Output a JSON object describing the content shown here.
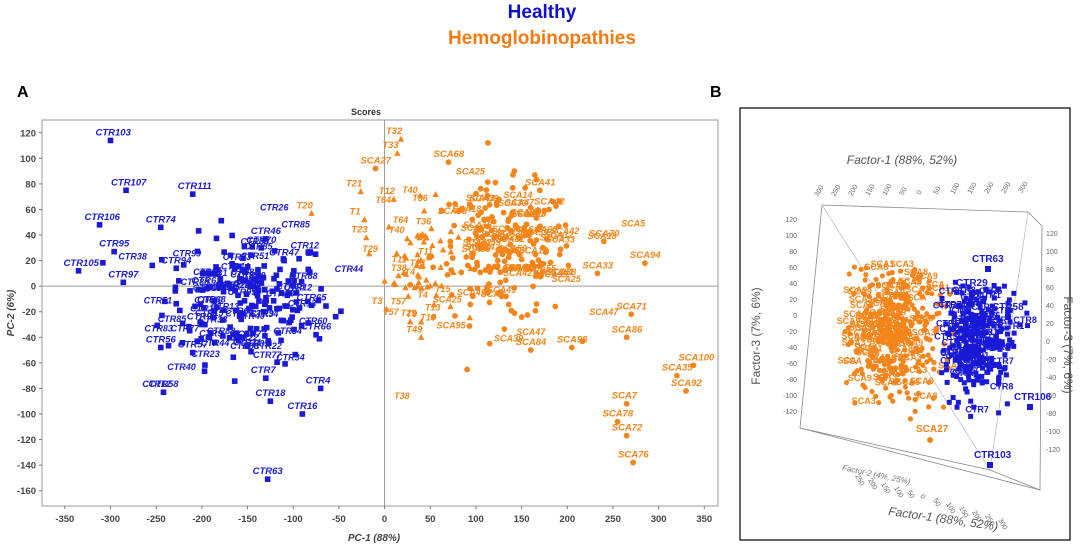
{
  "legend": {
    "healthy": "Healthy",
    "hemo": "Hemoglobinopathies"
  },
  "panels": {
    "a": "A",
    "b": "B"
  },
  "colors": {
    "healthy": "#1a1ad6",
    "hemo": "#f4851b"
  },
  "chart_data": [
    {
      "type": "scatter",
      "title": "Scores",
      "xlabel": "PC-1 (88%)",
      "ylabel": "PC-2 (6%)",
      "xlim": [
        -375,
        365
      ],
      "ylim": [
        -172,
        130
      ],
      "xticks": [
        -350,
        -300,
        -250,
        -200,
        -150,
        -100,
        -50,
        0,
        50,
        100,
        150,
        200,
        250,
        300,
        350
      ],
      "yticks": [
        -160,
        -140,
        -120,
        -100,
        -80,
        -60,
        -40,
        -20,
        0,
        20,
        40,
        60,
        80,
        100,
        120
      ],
      "labeled_points": [
        {
          "g": "h",
          "m": "s",
          "l": "CTR103",
          "x": -300,
          "y": 114
        },
        {
          "g": "h",
          "m": "s",
          "l": "CTR107",
          "x": -283,
          "y": 75
        },
        {
          "g": "h",
          "m": "s",
          "l": "CTR106",
          "x": -312,
          "y": 48
        },
        {
          "g": "h",
          "m": "s",
          "l": "CTR105",
          "x": -335,
          "y": 12
        },
        {
          "g": "h",
          "m": "s",
          "l": "CTR95",
          "x": -296,
          "y": 27
        },
        {
          "g": "h",
          "m": "s",
          "l": "CTR97",
          "x": -286,
          "y": 3
        },
        {
          "g": "h",
          "m": "s",
          "l": "CTR111",
          "x": -210,
          "y": 72
        },
        {
          "g": "h",
          "m": "s",
          "l": "CTR74",
          "x": -245,
          "y": 46
        },
        {
          "g": "h",
          "m": "s",
          "l": "CTR94",
          "x": -228,
          "y": 14
        },
        {
          "g": "h",
          "m": "s",
          "l": "CTR62",
          "x": -195,
          "y": -2
        },
        {
          "g": "h",
          "m": "s",
          "l": "CTR93",
          "x": -200,
          "y": -30
        },
        {
          "g": "h",
          "m": "s",
          "l": "CTR56",
          "x": -245,
          "y": -48
        },
        {
          "g": "h",
          "m": "s",
          "l": "CTR57",
          "x": -210,
          "y": -52
        },
        {
          "g": "h",
          "m": "s",
          "l": "CTR58",
          "x": -242,
          "y": -83
        },
        {
          "g": "h",
          "m": "s",
          "l": "CTR46",
          "x": -130,
          "y": 37
        },
        {
          "g": "h",
          "m": "s",
          "l": "CTR47",
          "x": -110,
          "y": 20
        },
        {
          "g": "h",
          "m": "s",
          "l": "CTR70",
          "x": -135,
          "y": 30
        },
        {
          "g": "h",
          "m": "s",
          "l": "CTR65",
          "x": -80,
          "y": -15
        },
        {
          "g": "h",
          "m": "s",
          "l": "CTR66",
          "x": -75,
          "y": -38
        },
        {
          "g": "h",
          "m": "s",
          "l": "CTR7",
          "x": -130,
          "y": -72
        },
        {
          "g": "h",
          "m": "s",
          "l": "CTR18",
          "x": -125,
          "y": -90
        },
        {
          "g": "h",
          "m": "s",
          "l": "CTR4",
          "x": -70,
          "y": -80
        },
        {
          "g": "h",
          "m": "s",
          "l": "CTR16",
          "x": -90,
          "y": -100
        },
        {
          "g": "h",
          "m": "s",
          "l": "CTR63",
          "x": -128,
          "y": -151
        },
        {
          "g": "o",
          "m": "t",
          "l": "T32",
          "x": 18,
          "y": 115
        },
        {
          "g": "o",
          "m": "t",
          "l": "T33",
          "x": 14,
          "y": 104
        },
        {
          "g": "o",
          "m": "t",
          "l": "T21",
          "x": -26,
          "y": 74
        },
        {
          "g": "o",
          "m": "t",
          "l": "T20",
          "x": -80,
          "y": 57
        },
        {
          "g": "o",
          "m": "t",
          "l": "T12",
          "x": 10,
          "y": 68
        },
        {
          "g": "o",
          "m": "t",
          "l": "T1",
          "x": -22,
          "y": 52
        },
        {
          "g": "o",
          "m": "t",
          "l": "T23",
          "x": -20,
          "y": 38
        },
        {
          "g": "o",
          "m": "t",
          "l": "T3",
          "x": 2,
          "y": -18
        },
        {
          "g": "o",
          "m": "t",
          "l": "T9",
          "x": 40,
          "y": -28
        },
        {
          "g": "o",
          "m": "t",
          "l": "T49",
          "x": 40,
          "y": -40
        },
        {
          "g": "o",
          "m": "c",
          "l": "SCA27",
          "x": -10,
          "y": 92
        },
        {
          "g": "o",
          "m": "c",
          "l": "SCA68",
          "x": 70,
          "y": 97
        },
        {
          "g": "o",
          "m": "c",
          "l": "SCA41",
          "x": 170,
          "y": 75
        },
        {
          "g": "o",
          "m": "c",
          "l": "SCA42",
          "x": 180,
          "y": 60
        },
        {
          "g": "o",
          "m": "c",
          "l": "SCA70",
          "x": 240,
          "y": 35
        },
        {
          "g": "o",
          "m": "c",
          "l": "SCA94",
          "x": 285,
          "y": 18
        },
        {
          "g": "o",
          "m": "c",
          "l": "SCA33",
          "x": 233,
          "y": 10
        },
        {
          "g": "o",
          "m": "c",
          "l": "SCA71",
          "x": 270,
          "y": -22
        },
        {
          "g": "o",
          "m": "c",
          "l": "SCA86",
          "x": 265,
          "y": -40
        },
        {
          "g": "o",
          "m": "c",
          "l": "SCA84",
          "x": 160,
          "y": -50
        },
        {
          "g": "o",
          "m": "c",
          "l": "SCA98",
          "x": 205,
          "y": -48
        },
        {
          "g": "o",
          "m": "c",
          "l": "SCA100",
          "x": 338,
          "y": -62
        },
        {
          "g": "o",
          "m": "c",
          "l": "SCA35",
          "x": 320,
          "y": -70
        },
        {
          "g": "o",
          "m": "c",
          "l": "SCA92",
          "x": 330,
          "y": -82
        },
        {
          "g": "o",
          "m": "c",
          "l": "SCA7",
          "x": 265,
          "y": -92
        },
        {
          "g": "o",
          "m": "c",
          "l": "SCA78",
          "x": 255,
          "y": -106
        },
        {
          "g": "o",
          "m": "c",
          "l": "SCA72",
          "x": 265,
          "y": -117
        },
        {
          "g": "o",
          "m": "c",
          "l": "SCA76",
          "x": 272,
          "y": -138
        }
      ],
      "cluster_points": [
        {
          "g": "h",
          "m": "s",
          "cx": -150,
          "cy": -10,
          "sx": 65,
          "sy": 35,
          "n": 190
        },
        {
          "g": "o",
          "m": "t",
          "cx": 40,
          "cy": 20,
          "sx": 28,
          "sy": 32,
          "n": 60
        },
        {
          "g": "o",
          "m": "c",
          "cx": 130,
          "cy": 25,
          "sx": 55,
          "sy": 38,
          "n": 190
        }
      ]
    },
    {
      "type": "scatter",
      "title": "",
      "xlabel": "Factor-1 (88%, 52%)",
      "top_axis_label": "Factor-1 (88%, 52%)",
      "ylabel": "Factor-3 (7%, 6%)",
      "right_axis_label": "Factor-3 (7%, 6%)",
      "depth_label": "Factor-2 (4%, 25%)",
      "ticks_factor1": [
        "300",
        "250",
        "200",
        "150",
        "100",
        "50",
        "0",
        "50",
        "100",
        "150",
        "200",
        "250",
        "300"
      ],
      "ticks_factor3": [
        "120",
        "100",
        "80",
        "60",
        "40",
        "20",
        "0",
        "-20",
        "-40",
        "-60",
        "-80",
        "-100",
        "-120"
      ],
      "labeled_points": [
        {
          "g": "h",
          "l": "CTR63"
        },
        {
          "g": "h",
          "l": "CTR29"
        },
        {
          "g": "h",
          "l": "CTR58"
        },
        {
          "g": "h",
          "l": "CTR103"
        },
        {
          "g": "h",
          "l": "CTR106"
        },
        {
          "g": "o",
          "l": "SCA27"
        }
      ]
    }
  ]
}
